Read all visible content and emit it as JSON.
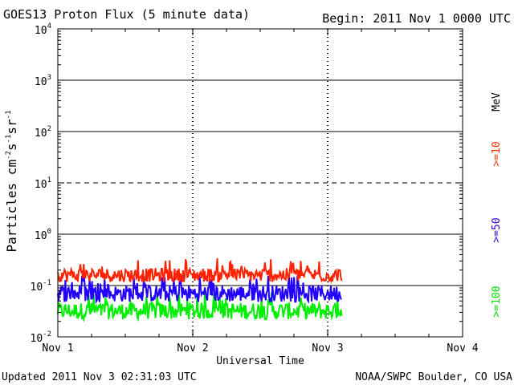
{
  "header": {
    "title": "GOES13 Proton Flux (5 minute data)",
    "begin": "Begin: 2011 Nov 1 0000 UTC"
  },
  "footer": {
    "updated": "Updated 2011 Nov  3 02:31:03 UTC",
    "source": "NOAA/SWPC Boulder, CO USA"
  },
  "chart_data": {
    "type": "line",
    "title": "GOES13 Proton Flux (5 minute data)",
    "xlabel": "Universal Time",
    "ylabel_parts": {
      "base": "Particles cm",
      "exp1": "-2",
      "mid1": "s",
      "exp2": "-1",
      "mid2": "sr",
      "exp3": "-1"
    },
    "y_scale": "log",
    "ylim": [
      0.01,
      10000
    ],
    "y_ticks": [
      {
        "value": 10000,
        "base": "10",
        "exp": "4"
      },
      {
        "value": 1000,
        "base": "10",
        "exp": "3"
      },
      {
        "value": 100,
        "base": "10",
        "exp": "2"
      },
      {
        "value": 10,
        "base": "10",
        "exp": "1"
      },
      {
        "value": 1,
        "base": "10",
        "exp": "0"
      },
      {
        "value": 0.1,
        "base": "10",
        "exp": "-1"
      },
      {
        "value": 0.01,
        "base": "10",
        "exp": "-2"
      }
    ],
    "x_range_days": [
      0,
      3
    ],
    "x_ticks": [
      {
        "day": 0,
        "label": "Nov 1"
      },
      {
        "day": 1,
        "label": "Nov 2"
      },
      {
        "day": 2,
        "label": "Nov 3"
      },
      {
        "day": 3,
        "label": "Nov 4"
      }
    ],
    "gridlines_solid": [
      1000,
      100,
      1,
      0.1
    ],
    "gridlines_dashed": [
      10
    ],
    "data_end_day": 2.104,
    "units_label": "MeV",
    "series": [
      {
        "name": ">=10",
        "color": "#ff2200",
        "mean": 0.16,
        "low": 0.11,
        "high": 0.34
      },
      {
        "name": ">=50",
        "color": "#2200ff",
        "mean": 0.07,
        "low": 0.04,
        "high": 0.16
      },
      {
        "name": ">=100",
        "color": "#00ee00",
        "mean": 0.032,
        "low": 0.02,
        "high": 0.08
      }
    ]
  }
}
